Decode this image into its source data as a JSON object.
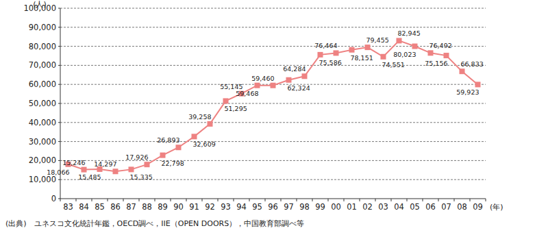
{
  "chart_data": {
    "type": "line",
    "y_label": "(人)",
    "x_label": "(年)",
    "source": "(出典)　ユネスコ文化統計年鑑，OECD調べ，IIE（OPEN DOORS），中国教育部調べ等",
    "categories": [
      "83",
      "84",
      "85",
      "86",
      "87",
      "88",
      "89",
      "90",
      "91",
      "92",
      "93",
      "94",
      "95",
      "96",
      "97",
      "98",
      "99",
      "00",
      "01",
      "02",
      "03",
      "04",
      "05",
      "06",
      "07",
      "08",
      "09"
    ],
    "values": [
      18066,
      15246,
      15485,
      14297,
      15335,
      17926,
      22798,
      26893,
      32609,
      39258,
      51295,
      55145,
      59468,
      59460,
      62324,
      64284,
      75586,
      76464,
      78151,
      79455,
      74551,
      82945,
      80023,
      76492,
      75156,
      66833,
      59923
    ],
    "value_labels": [
      "18,066",
      "15,246",
      "15,485",
      "14,297",
      "15,335",
      "17,926",
      "22,798",
      "26,893",
      "32,609",
      "39,258",
      "51,295",
      "55,145",
      "59,468",
      "59,460",
      "62,324",
      "64,284",
      "75,586",
      "76,464",
      "78,151",
      "79,455",
      "74,551",
      "82,945",
      "80,023",
      "76,492",
      "75,156",
      "66,833",
      "59,923"
    ],
    "color": "#ee8282",
    "marker": "square",
    "line_style": "solid",
    "data_labels": true,
    "grid": true,
    "ylim": [
      0,
      100000
    ],
    "yticks": [
      0,
      {
        "value": 10000,
        "label": "10,000"
      },
      {
        "value": 20000,
        "label": "20,000"
      },
      {
        "value": 30000,
        "label": "30,000"
      },
      {
        "value": 40000,
        "label": "40,000"
      },
      {
        "value": 50000,
        "label": "50,000"
      },
      {
        "value": 60000,
        "label": "60,000"
      },
      {
        "value": 70000,
        "label": "70,000"
      },
      {
        "value": 80000,
        "label": "80,000"
      },
      {
        "value": 90000,
        "label": "90,000"
      },
      {
        "value": 100000,
        "label": "100,000"
      }
    ]
  }
}
